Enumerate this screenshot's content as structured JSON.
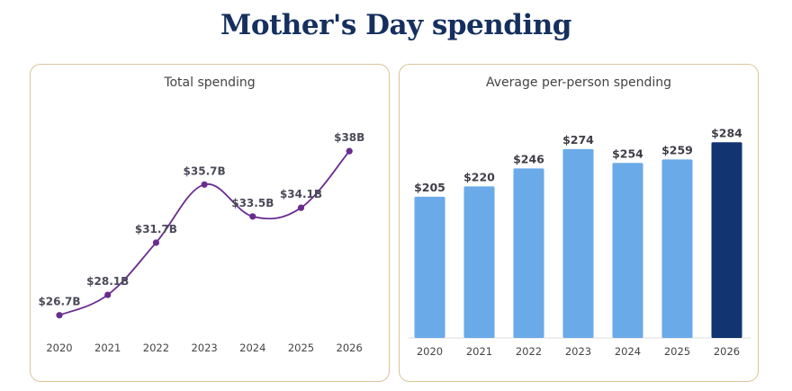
{
  "page": {
    "title": "Mother's Day spending"
  },
  "chart_data": [
    {
      "type": "line",
      "title": "Total spending",
      "categories": [
        "2020",
        "2021",
        "2022",
        "2023",
        "2024",
        "2025",
        "2026"
      ],
      "values": [
        26.7,
        28.1,
        31.7,
        35.7,
        33.5,
        34.1,
        38
      ],
      "data_labels": [
        "$26.7B",
        "$28.1B",
        "$31.7B",
        "$35.7B",
        "$33.5B",
        "$34.1B",
        "$38B"
      ],
      "ylim": [
        26,
        39
      ],
      "grid": false,
      "smooth": true,
      "line_color": "#6a2c91"
    },
    {
      "type": "bar",
      "title": "Average per-person spending",
      "categories": [
        "2020",
        "2021",
        "2022",
        "2023",
        "2024",
        "2025",
        "2026"
      ],
      "values": [
        205,
        220,
        246,
        274,
        254,
        259,
        284
      ],
      "data_labels": [
        "$205",
        "$220",
        "$246",
        "$274",
        "$254",
        "$259",
        "$284"
      ],
      "ylim": [
        0,
        300
      ],
      "grid": false,
      "bar_color": "#6aaae8",
      "highlight_color": "#123470",
      "highlight_index": 6
    }
  ]
}
